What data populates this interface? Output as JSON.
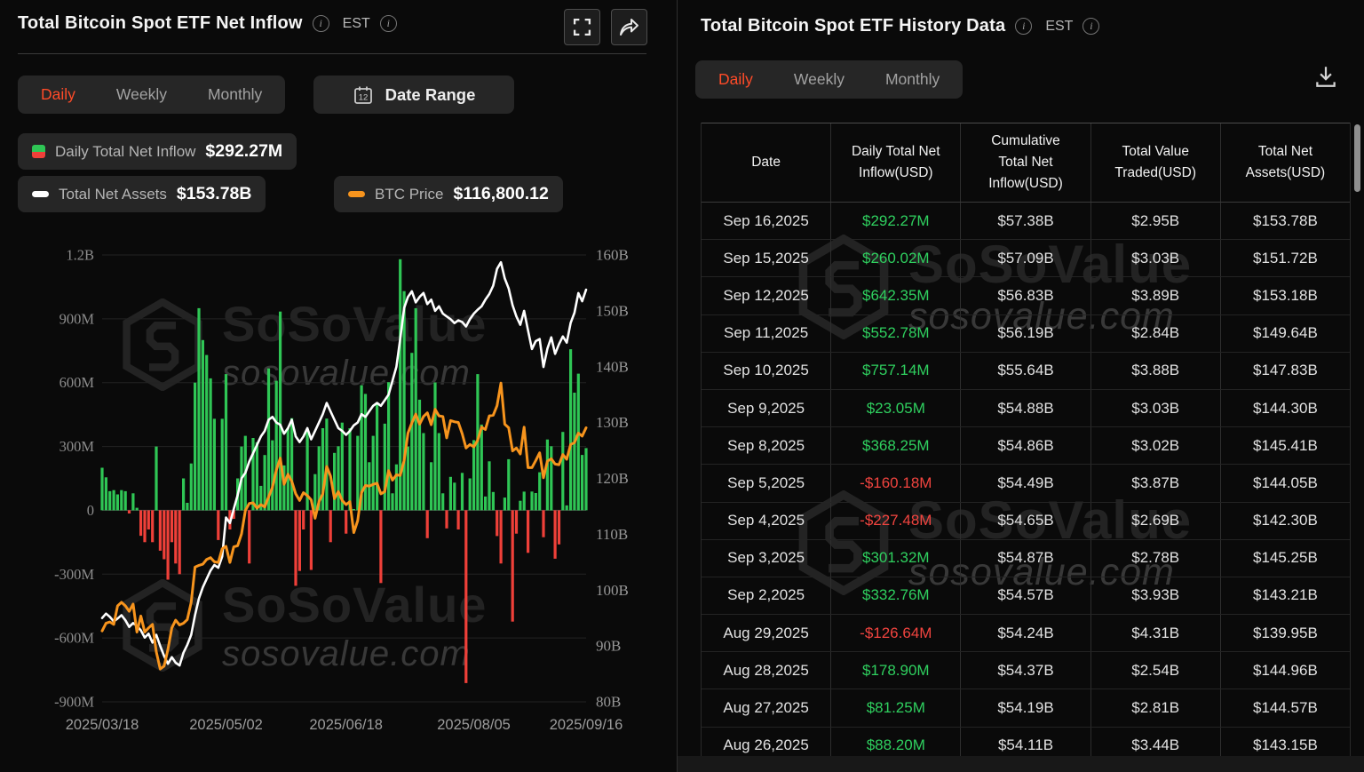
{
  "watermark": {
    "brand": "SoSoValue",
    "domain": "sosovalue.com"
  },
  "colors": {
    "accent_orange": "#ff4b28",
    "bar_green": "#2fc655",
    "bar_red": "#ef4039",
    "line_white": "#ffffff",
    "line_orange": "#f7941d",
    "table_green": "#2fd05f",
    "table_red": "#f1443f"
  },
  "left_panel": {
    "title": "Total Bitcoin Spot ETF Net Inflow",
    "timezone": "EST",
    "tabs": {
      "items": [
        "Daily",
        "Weekly",
        "Monthly"
      ],
      "active": "Daily"
    },
    "date_range_label": "Date Range",
    "calendar_icon_day": "12",
    "legend": {
      "inflow_label": "Daily Total Net Inflow",
      "inflow_value": "$292.27M",
      "assets_label": "Total Net Assets",
      "assets_value": "$153.78B",
      "btc_label": "BTC Price",
      "btc_value": "$116,800.12"
    }
  },
  "chart_data": {
    "type": "combo_bar_line",
    "title": "Total Bitcoin Spot ETF Net Inflow",
    "x_tick_labels": [
      "2025/03/18",
      "2025/05/02",
      "2025/06/18",
      "2025/08/05",
      "2025/09/16"
    ],
    "x_tick_indices": [
      0,
      32,
      63,
      96,
      125
    ],
    "grid": true,
    "left_axis": {
      "title": "Daily Total Net Inflow (USD)",
      "tick_labels": [
        "1.2B",
        "900M",
        "600M",
        "300M",
        "0",
        "-300M",
        "-600M",
        "-900M"
      ],
      "tick_values": [
        1200,
        900,
        600,
        300,
        0,
        -300,
        -600,
        -900
      ],
      "range_musd": [
        -900,
        1200
      ]
    },
    "right_axis": {
      "title": "Total Net Assets (USD)",
      "tick_labels": [
        "160B",
        "150B",
        "140B",
        "130B",
        "120B",
        "110B",
        "100B",
        "90B",
        "80B"
      ],
      "tick_values": [
        160,
        150,
        140,
        130,
        120,
        110,
        100,
        90,
        80
      ],
      "range_busd": [
        80,
        160
      ]
    },
    "btc_overlay_axis_kusd": [
      70.8,
      145.8
    ],
    "series": [
      {
        "name": "Daily Total Net Inflow",
        "type": "bar",
        "unit": "USD millions",
        "values": [
          200,
          155,
          90,
          95,
          75,
          95,
          90,
          -15,
          80,
          12,
          -120,
          -150,
          -90,
          -150,
          300,
          -190,
          -230,
          -326,
          -150,
          -250,
          -300,
          150,
          35,
          220,
          600,
          950,
          800,
          730,
          620,
          430,
          -140,
          430,
          640,
          -90,
          -40,
          150,
          300,
          350,
          -250,
          340,
          320,
          115,
          260,
          667,
          329,
          609,
          934,
          211,
          385,
          433,
          -355,
          -285,
          -90,
          378,
          -280,
          170,
          301,
          386,
          431,
          -150,
          270,
          301,
          412,
          -110,
          386,
          6,
          350,
          588,
          547,
          226,
          350,
          501,
          -342,
          407,
          602,
          80,
          216,
          1180,
          1030,
          300,
          740,
          950,
          520,
          363,
          -131,
          226,
          601,
          363,
          80,
          -85,
          157,
          130,
          -90,
          176,
          -812,
          150,
          330,
          640,
          403,
          65,
          230,
          86,
          -121,
          -250,
          60,
          240,
          -523,
          -110,
          45,
          88,
          -200,
          88.2,
          81.25,
          178.9,
          -126.64,
          332.76,
          301.32,
          -227.48,
          -160.18,
          368.25,
          23.05,
          757.14,
          552.78,
          642.35,
          260.02,
          292.27
        ]
      },
      {
        "name": "Total Net Assets",
        "type": "line",
        "unit": "USD billions",
        "values": [
          95,
          95.8,
          95.2,
          94.4,
          94.9,
          95.5,
          94.6,
          93.4,
          94.1,
          93.6,
          92.8,
          91.5,
          92.2,
          90.6,
          92,
          90,
          88.2,
          86.8,
          88,
          87,
          86.5,
          88.8,
          90.2,
          92,
          95.5,
          98.5,
          100.5,
          102,
          103.5,
          104.5,
          104,
          106,
          113,
          112,
          114.5,
          117,
          120,
          121,
          123,
          124.5,
          126,
          127.5,
          128.5,
          130.5,
          131,
          130,
          129.6,
          128,
          129,
          130.5,
          127.5,
          126.5,
          127.5,
          129,
          127,
          128.5,
          130,
          131.5,
          133.5,
          132,
          130.5,
          129,
          128.5,
          127.8,
          128.5,
          129.5,
          130,
          131.5,
          131,
          132,
          133,
          133.5,
          133,
          134,
          135,
          137.5,
          140,
          145,
          150.5,
          152.5,
          153.5,
          151.5,
          152.5,
          153.2,
          151.2,
          152,
          150,
          150.8,
          149.5,
          149,
          148.5,
          147.8,
          148.3,
          148,
          147.2,
          148.5,
          149.5,
          150.2,
          150.8,
          152,
          153,
          154.5,
          157.5,
          158.7,
          155.8,
          154,
          151,
          149,
          147.5,
          150,
          146.5,
          143.15,
          144.57,
          144.96,
          139.95,
          143.21,
          145.25,
          142.3,
          144.05,
          145.41,
          144.3,
          147.83,
          149.64,
          153.18,
          151.72,
          153.78
        ]
      },
      {
        "name": "BTC Price",
        "type": "line",
        "unit": "USD thousands",
        "values": [
          82.7,
          84,
          84.2,
          83.8,
          86.9,
          87.5,
          86.9,
          86,
          87.2,
          82.5,
          85.2,
          82.5,
          83.2,
          83.8,
          79.2,
          76.3,
          76.8,
          79.6,
          83.2,
          84.5,
          83.7,
          84,
          84.6,
          87.5,
          93.4,
          93.7,
          93.9,
          94.7,
          95,
          94.3,
          94.2,
          96.5,
          96.9,
          94.2,
          96.8,
          97,
          99,
          102.9,
          104.1,
          104.2,
          103.3,
          103.9,
          103.5,
          105.2,
          106.8,
          109.7,
          111.7,
          107.3,
          109,
          107.8,
          105.7,
          104.6,
          105.9,
          105.4,
          104.7,
          101.6,
          104.4,
          105.7,
          110.3,
          108.7,
          104.9,
          106.1,
          104.6,
          103.9,
          104.4,
          99.2,
          101.2,
          105.9,
          107.1,
          107,
          107.3,
          107.5,
          105.7,
          106.1,
          109.6,
          108,
          108.9,
          108.8,
          111.3,
          115.9,
          117.6,
          119.1,
          117.4,
          118.7,
          119.3,
          117.3,
          119.9,
          118.8,
          118.7,
          115.1,
          118,
          117.8,
          117.7,
          115.8,
          113.4,
          114,
          113.6,
          114.7,
          116.9,
          116.5,
          118.8,
          118.9,
          120.5,
          124.3,
          117.4,
          116.8,
          112.9,
          113.4,
          112.4,
          116.9,
          110.1,
          110.1,
          111.3,
          112.6,
          108.4,
          111.2,
          111.6,
          110.7,
          110.6,
          112.3,
          111.5,
          114,
          114.3,
          115.9,
          115.4,
          116.8
        ]
      }
    ]
  },
  "right_panel": {
    "title": "Total Bitcoin Spot ETF History Data",
    "timezone": "EST",
    "tabs": {
      "items": [
        "Daily",
        "Weekly",
        "Monthly"
      ],
      "active": "Daily"
    },
    "table": {
      "columns": [
        "Date",
        "Daily Total Net Inflow(USD)",
        "Cumulative Total Net Inflow(USD)",
        "Total Value Traded(USD)",
        "Total Net Assets(USD)"
      ],
      "rows": [
        [
          "Sep 16,2025",
          "$292.27M",
          "$57.38B",
          "$2.95B",
          "$153.78B"
        ],
        [
          "Sep 15,2025",
          "$260.02M",
          "$57.09B",
          "$3.03B",
          "$151.72B"
        ],
        [
          "Sep 12,2025",
          "$642.35M",
          "$56.83B",
          "$3.89B",
          "$153.18B"
        ],
        [
          "Sep 11,2025",
          "$552.78M",
          "$56.19B",
          "$2.84B",
          "$149.64B"
        ],
        [
          "Sep 10,2025",
          "$757.14M",
          "$55.64B",
          "$3.88B",
          "$147.83B"
        ],
        [
          "Sep 9,2025",
          "$23.05M",
          "$54.88B",
          "$3.03B",
          "$144.30B"
        ],
        [
          "Sep 8,2025",
          "$368.25M",
          "$54.86B",
          "$3.02B",
          "$145.41B"
        ],
        [
          "Sep 5,2025",
          "-$160.18M",
          "$54.49B",
          "$3.87B",
          "$144.05B"
        ],
        [
          "Sep 4,2025",
          "-$227.48M",
          "$54.65B",
          "$2.69B",
          "$142.30B"
        ],
        [
          "Sep 3,2025",
          "$301.32M",
          "$54.87B",
          "$2.78B",
          "$145.25B"
        ],
        [
          "Sep 2,2025",
          "$332.76M",
          "$54.57B",
          "$3.93B",
          "$143.21B"
        ],
        [
          "Aug 29,2025",
          "-$126.64M",
          "$54.24B",
          "$4.31B",
          "$139.95B"
        ],
        [
          "Aug 28,2025",
          "$178.90M",
          "$54.37B",
          "$2.54B",
          "$144.96B"
        ],
        [
          "Aug 27,2025",
          "$81.25M",
          "$54.19B",
          "$2.81B",
          "$144.57B"
        ],
        [
          "Aug 26,2025",
          "$88.20M",
          "$54.11B",
          "$3.44B",
          "$143.15B"
        ]
      ]
    }
  }
}
